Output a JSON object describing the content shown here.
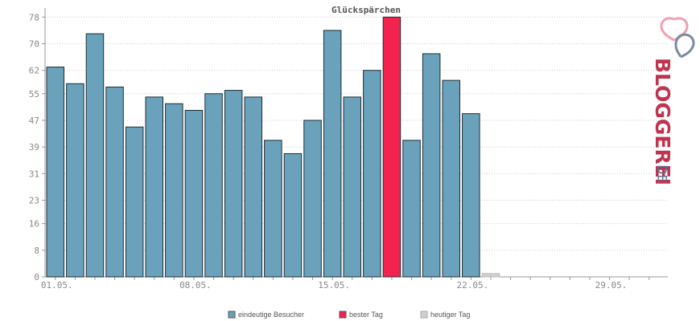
{
  "chart_data": {
    "type": "bar",
    "title": "Glückspärchen",
    "ylim": [
      0,
      80
    ],
    "yticks": [
      0,
      8,
      16,
      23,
      31,
      39,
      47,
      55,
      62,
      70,
      78
    ],
    "x_tick_labels": [
      "01.05.",
      "08.05.",
      "15.05.",
      "22.05.",
      "29.05."
    ],
    "x_tick_label_day_indices": [
      0,
      7,
      14,
      21,
      28
    ],
    "days_in_month": 31,
    "series": [
      {
        "name": "eindeutige Besucher",
        "color": "#6aa1bb",
        "values": [
          63,
          58,
          73,
          57,
          45,
          54,
          52,
          50,
          55,
          56,
          54,
          41,
          37,
          47,
          74,
          54,
          62,
          null,
          41,
          67,
          59,
          49
        ]
      },
      {
        "name": "bester Tag",
        "color": "#f4224f",
        "values": [
          null,
          null,
          null,
          null,
          null,
          null,
          null,
          null,
          null,
          null,
          null,
          null,
          null,
          null,
          null,
          null,
          null,
          78,
          null,
          null,
          null,
          null
        ]
      },
      {
        "name": "heutiger Tag",
        "color": "#d0d0d0",
        "values": [
          null,
          null,
          null,
          null,
          null,
          null,
          null,
          null,
          null,
          null,
          null,
          null,
          null,
          null,
          null,
          null,
          null,
          null,
          null,
          null,
          null,
          null,
          1
        ]
      }
    ],
    "grid": true,
    "legend_position": "bottom"
  },
  "logo": {
    "text_main": "BLOGGEREI",
    "text_suffix": ".DE",
    "main_color": "#c0334f",
    "suffix_color": "#5b6f8e"
  }
}
